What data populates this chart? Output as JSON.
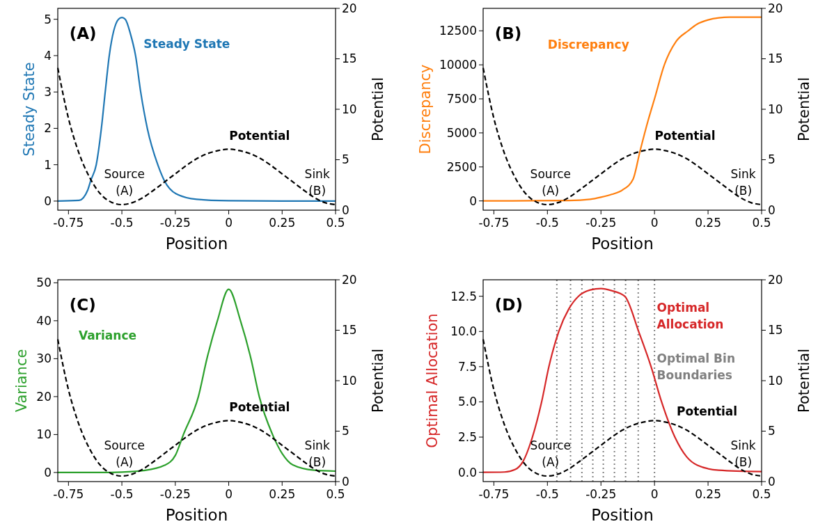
{
  "chart_data": [
    {
      "type": "line",
      "title": "(A)",
      "xlabel": "Position",
      "ylabel": "Steady State",
      "y2label": "Potential",
      "xlim": [
        -0.8,
        0.5
      ],
      "xticks": [
        -0.75,
        -0.5,
        -0.25,
        0,
        0.25,
        0.5
      ],
      "ylim": [
        -0.25,
        5.3
      ],
      "yticks": [
        0,
        1,
        2,
        3,
        4,
        5
      ],
      "y2lim": [
        0,
        20
      ],
      "y2ticks": [
        0,
        5,
        10,
        15,
        20
      ],
      "series": [
        {
          "name": "Steady State",
          "color": "#1f77b4",
          "line_style": "solid",
          "x": [
            -0.8,
            -0.7,
            -0.66,
            -0.646,
            -0.62,
            -0.596,
            -0.578,
            -0.559,
            -0.516,
            -0.5,
            -0.484,
            -0.46,
            -0.436,
            -0.412,
            -0.381,
            -0.332,
            -0.301,
            -0.246,
            -0.15,
            0,
            0.25,
            0.5
          ],
          "values": [
            0,
            0.02,
            0.3,
            0.56,
            1,
            2,
            3,
            4,
            5,
            5.05,
            5,
            4.6,
            4,
            3,
            2,
            1,
            0.56,
            0.2,
            0.05,
            0.01,
            0,
            0
          ]
        },
        {
          "name": "Potential",
          "color": "#000000",
          "axis": "y2",
          "line_style": "dashed",
          "x": [
            -0.8,
            -0.75,
            -0.7,
            -0.65,
            -0.6,
            -0.55,
            -0.5,
            -0.45,
            -0.4,
            -0.35,
            -0.3,
            -0.25,
            -0.2,
            -0.15,
            -0.1,
            -0.05,
            0,
            0.05,
            0.1,
            0.15,
            0.2,
            0.25,
            0.3,
            0.35,
            0.4,
            0.45,
            0.5
          ],
          "values": [
            14.1,
            9.1,
            5.6,
            3.2,
            1.6,
            0.8,
            0.55,
            0.75,
            1.26,
            2.0,
            2.8,
            3.6,
            4.4,
            5.1,
            5.6,
            5.9,
            6.05,
            5.9,
            5.6,
            5.1,
            4.4,
            3.6,
            2.8,
            2.0,
            1.26,
            0.75,
            0.55
          ]
        }
      ],
      "annotations": [
        "Source\n(A)",
        "Sink\n(B)"
      ]
    },
    {
      "type": "line",
      "title": "(B)",
      "xlabel": "Position",
      "ylabel": "Discrepancy",
      "y2label": "Potential",
      "xlim": [
        -0.8,
        0.5
      ],
      "xticks": [
        -0.75,
        -0.5,
        -0.25,
        0,
        0.25,
        0.5
      ],
      "ylim": [
        -680,
        14150
      ],
      "yticks": [
        0,
        2500,
        5000,
        7500,
        10000,
        12500
      ],
      "y2lim": [
        0,
        20
      ],
      "y2ticks": [
        0,
        5,
        10,
        15,
        20
      ],
      "series": [
        {
          "name": "Discrepancy",
          "color": "#ff7f0e",
          "line_style": "solid",
          "x": [
            -0.8,
            -0.4,
            -0.3,
            -0.25,
            -0.2,
            -0.15,
            -0.1,
            -0.068,
            -0.03,
            0,
            0.046,
            0.1,
            0.157,
            0.2,
            0.25,
            0.3,
            0.35,
            0.5
          ],
          "values": [
            0,
            30,
            120,
            270,
            480,
            800,
            1600,
            3630,
            5900,
            7500,
            10000,
            11700,
            12500,
            13000,
            13300,
            13450,
            13500,
            13500
          ]
        },
        {
          "name": "Potential",
          "color": "#000000",
          "axis": "y2",
          "line_style": "dashed",
          "x": [
            -0.8,
            -0.75,
            -0.7,
            -0.65,
            -0.6,
            -0.55,
            -0.5,
            -0.45,
            -0.4,
            -0.35,
            -0.3,
            -0.25,
            -0.2,
            -0.15,
            -0.1,
            -0.05,
            0,
            0.05,
            0.1,
            0.15,
            0.2,
            0.25,
            0.3,
            0.35,
            0.4,
            0.45,
            0.5
          ],
          "values": [
            14.1,
            9.1,
            5.6,
            3.2,
            1.6,
            0.8,
            0.55,
            0.75,
            1.26,
            2.0,
            2.8,
            3.6,
            4.4,
            5.1,
            5.6,
            5.9,
            6.05,
            5.9,
            5.6,
            5.1,
            4.4,
            3.6,
            2.8,
            2.0,
            1.26,
            0.75,
            0.55
          ]
        }
      ],
      "annotations": [
        "Source\n(A)",
        "Sink\n(B)"
      ]
    },
    {
      "type": "line",
      "title": "(C)",
      "xlabel": "Position",
      "ylabel": "Variance",
      "y2label": "Potential",
      "xlim": [
        -0.8,
        0.5
      ],
      "xticks": [
        -0.75,
        -0.5,
        -0.25,
        0,
        0.25,
        0.5
      ],
      "ylim": [
        -2.4,
        50.8
      ],
      "yticks": [
        0,
        10,
        20,
        30,
        40,
        50
      ],
      "y2lim": [
        0,
        20
      ],
      "y2ticks": [
        0,
        5,
        10,
        15,
        20
      ],
      "series": [
        {
          "name": "Variance",
          "color": "#2ca02c",
          "line_style": "solid",
          "x": [
            -0.8,
            -0.6,
            -0.5,
            -0.4,
            -0.3,
            -0.25,
            -0.212,
            -0.142,
            -0.102,
            -0.053,
            0,
            0.055,
            0.104,
            0.143,
            0.205,
            0.25,
            0.3,
            0.4,
            0.5
          ],
          "values": [
            0,
            0,
            0.1,
            0.5,
            1.9,
            4.5,
            10,
            20,
            30,
            40,
            48.3,
            40,
            30,
            20,
            10,
            5,
            2,
            0.6,
            0.35
          ]
        },
        {
          "name": "Potential",
          "color": "#000000",
          "axis": "y2",
          "line_style": "dashed",
          "x": [
            -0.8,
            -0.75,
            -0.7,
            -0.65,
            -0.6,
            -0.55,
            -0.5,
            -0.45,
            -0.4,
            -0.35,
            -0.3,
            -0.25,
            -0.2,
            -0.15,
            -0.1,
            -0.05,
            0,
            0.05,
            0.1,
            0.15,
            0.2,
            0.25,
            0.3,
            0.35,
            0.4,
            0.45,
            0.5
          ],
          "values": [
            14.1,
            9.1,
            5.6,
            3.2,
            1.6,
            0.8,
            0.55,
            0.75,
            1.26,
            2.0,
            2.8,
            3.6,
            4.4,
            5.1,
            5.6,
            5.9,
            6.05,
            5.9,
            5.6,
            5.1,
            4.4,
            3.6,
            2.8,
            2.0,
            1.26,
            0.75,
            0.55
          ]
        }
      ],
      "annotations": [
        "Source\n(A)",
        "Sink\n(B)"
      ]
    },
    {
      "type": "line",
      "title": "(D)",
      "xlabel": "Position",
      "ylabel": "Optimal Allocation",
      "y2label": "Potential",
      "xlim": [
        -0.8,
        0.5
      ],
      "xticks": [
        -0.75,
        -0.5,
        -0.25,
        0,
        0.25,
        0.5
      ],
      "ylim": [
        -0.66,
        13.67
      ],
      "yticks": [
        {
          "value": 0,
          "label": "0.0"
        },
        2.5,
        {
          "value": 5,
          "label": "5.0"
        },
        7.5,
        {
          "value": 10,
          "label": "10.0"
        },
        12.5
      ],
      "y2lim": [
        0,
        20
      ],
      "y2ticks": [
        0,
        5,
        10,
        15,
        20
      ],
      "series": [
        {
          "name": "Optimal\nAllocation",
          "color": "#d62728",
          "line_style": "solid",
          "x": [
            -0.8,
            -0.7,
            -0.65,
            -0.613,
            -0.57,
            -0.527,
            -0.493,
            -0.447,
            -0.4,
            -0.355,
            -0.3,
            -0.25,
            -0.2,
            -0.139,
            -0.074,
            -0.016,
            0.033,
            0.095,
            0.15,
            0.2,
            0.3,
            0.5
          ],
          "values": [
            0,
            0.02,
            0.2,
            0.79,
            2.5,
            5,
            7.5,
            10,
            11.6,
            12.5,
            12.95,
            13.05,
            12.9,
            12.5,
            10,
            7.5,
            5,
            2.5,
            1.1,
            0.5,
            0.15,
            0.05
          ]
        },
        {
          "name": "Potential",
          "color": "#000000",
          "axis": "y2",
          "line_style": "dashed",
          "x": [
            -0.8,
            -0.75,
            -0.7,
            -0.65,
            -0.6,
            -0.55,
            -0.5,
            -0.45,
            -0.4,
            -0.35,
            -0.3,
            -0.25,
            -0.2,
            -0.15,
            -0.1,
            -0.05,
            0,
            0.05,
            0.1,
            0.15,
            0.2,
            0.25,
            0.3,
            0.35,
            0.4,
            0.45,
            0.5
          ],
          "values": [
            14.1,
            9.1,
            5.6,
            3.2,
            1.6,
            0.8,
            0.55,
            0.75,
            1.26,
            2.0,
            2.8,
            3.6,
            4.4,
            5.1,
            5.6,
            5.9,
            6.05,
            5.9,
            5.6,
            5.1,
            4.4,
            3.6,
            2.8,
            2.0,
            1.26,
            0.75,
            0.55
          ]
        }
      ],
      "ref_lines": [
        {
          "axis": "x",
          "value": -0.456,
          "color": "#808080",
          "line_style": "dotted"
        },
        {
          "axis": "x",
          "value": -0.392,
          "color": "#808080",
          "line_style": "dotted"
        },
        {
          "axis": "x",
          "value": -0.339,
          "color": "#808080",
          "line_style": "dotted"
        },
        {
          "axis": "x",
          "value": -0.288,
          "color": "#808080",
          "line_style": "dotted"
        },
        {
          "axis": "x",
          "value": -0.239,
          "color": "#808080",
          "line_style": "dotted"
        },
        {
          "axis": "x",
          "value": -0.187,
          "color": "#808080",
          "line_style": "dotted"
        },
        {
          "axis": "x",
          "value": -0.135,
          "color": "#808080",
          "line_style": "dotted"
        },
        {
          "axis": "x",
          "value": -0.076,
          "color": "#808080",
          "line_style": "dotted"
        },
        {
          "axis": "x",
          "value": 0,
          "color": "#808080",
          "line_style": "dotted"
        }
      ],
      "annotations": [
        "Source\n(A)",
        "Sink\n(B)",
        "Optimal Bin\nBoundaries"
      ]
    }
  ]
}
